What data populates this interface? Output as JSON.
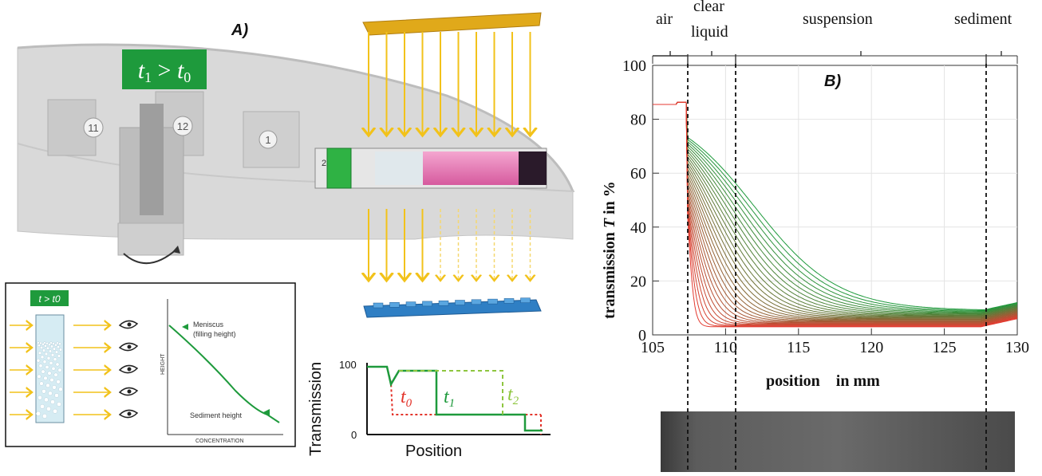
{
  "panel_a": {
    "label": "A)",
    "time_badge": {
      "t": "t",
      "s1": "1",
      "gt": " > ",
      "s0": "0"
    },
    "positions": [
      "11",
      "12",
      "1",
      "2"
    ],
    "inset": {
      "badge": "t > t0",
      "meniscus": "Meniscus",
      "filling": "(filling height)",
      "sediment": "Sediment height",
      "yaxis": "HEIGHT",
      "xaxis": "CONCENTRATION"
    },
    "mini_chart": {
      "ylabel": "Transmission",
      "xlabel": "Position",
      "tick_100": "100",
      "tick_0": "0",
      "t0": "t",
      "t0_sub": "0",
      "t1": "t",
      "t1_sub": "1",
      "t2": "t",
      "t2_sub": "2"
    }
  },
  "panel_b": {
    "label": "B)",
    "regions": [
      "air",
      "clear",
      "liquid",
      "suspension",
      "sediment"
    ],
    "ylabel_a": "transmission ",
    "ylabel_T": "T",
    "ylabel_b": " in %",
    "xlabel": "position    in mm",
    "x_ticks": [
      "105",
      "110",
      "115",
      "120",
      "125",
      "130"
    ],
    "y_ticks": [
      "0",
      "20",
      "40",
      "60",
      "80",
      "100"
    ]
  },
  "colors": {
    "green": "#1e9a3c",
    "red": "#e3332a",
    "yellow": "#f2c21a",
    "blue": "#2f7fc4",
    "pink": "#e879b8"
  }
}
